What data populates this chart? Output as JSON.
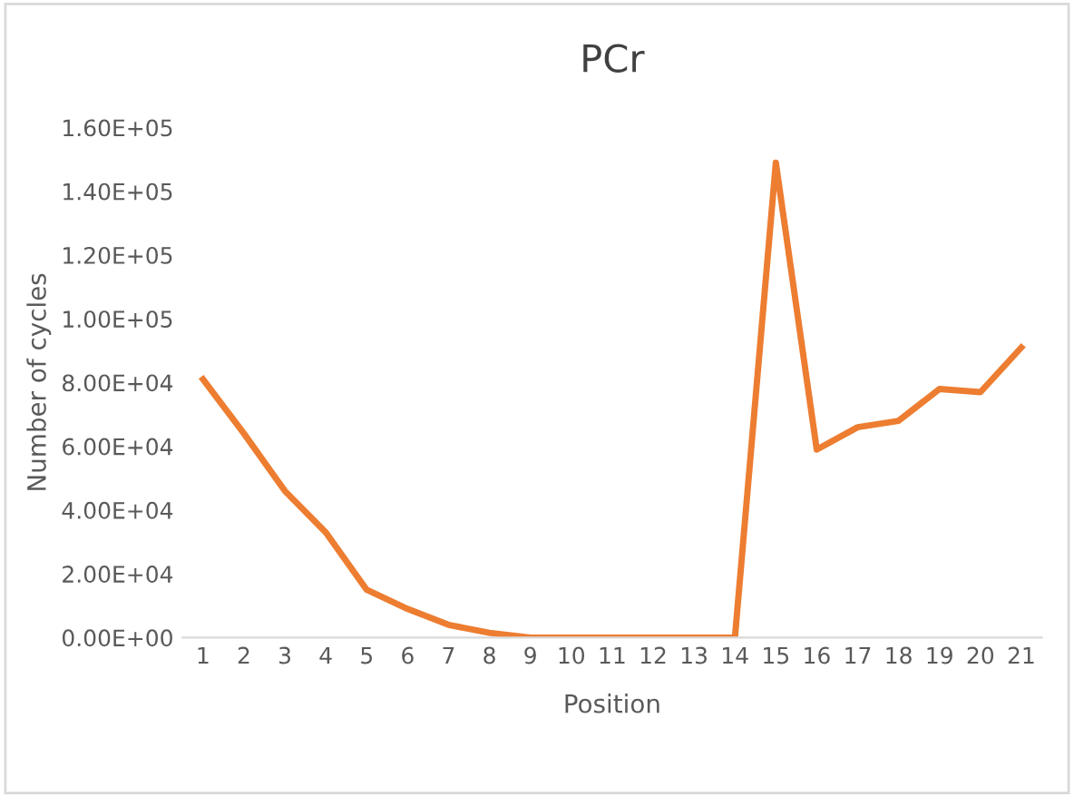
{
  "chart_data": {
    "type": "line",
    "title": "PCr",
    "xlabel": "Position",
    "ylabel": "Number of cycles",
    "categories": [
      "1",
      "2",
      "3",
      "4",
      "5",
      "6",
      "7",
      "8",
      "9",
      "10",
      "11",
      "12",
      "13",
      "14",
      "15",
      "16",
      "17",
      "18",
      "19",
      "20",
      "21"
    ],
    "series": [
      {
        "color": "#ed7d31",
        "values": [
          81000,
          64000,
          46000,
          33000,
          15000,
          9000,
          4000,
          1500,
          0,
          0,
          0,
          0,
          0,
          0,
          149000,
          59000,
          66000,
          68000,
          78000,
          77000,
          91000
        ]
      }
    ],
    "ylim": [
      0,
      160000
    ],
    "yticks": [
      {
        "value": 0,
        "label": "0.00E+00"
      },
      {
        "value": 20000,
        "label": "2.00E+04"
      },
      {
        "value": 40000,
        "label": "4.00E+04"
      },
      {
        "value": 60000,
        "label": "6.00E+04"
      },
      {
        "value": 80000,
        "label": "8.00E+04"
      },
      {
        "value": 100000,
        "label": "1.00E+05"
      },
      {
        "value": 120000,
        "label": "1.20E+05"
      },
      {
        "value": 140000,
        "label": "1.40E+05"
      },
      {
        "value": 160000,
        "label": "1.60E+05"
      }
    ],
    "grid": false,
    "legend": false,
    "marker": "none",
    "line_style": "solid"
  }
}
